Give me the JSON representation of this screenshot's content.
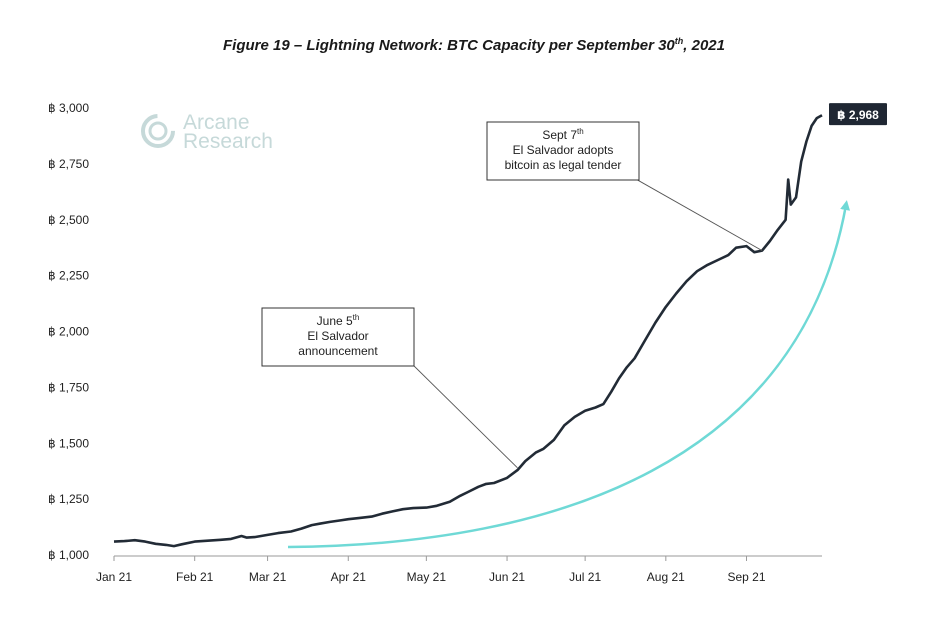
{
  "title": {
    "main": "Figure 19 – Lightning Network: BTC Capacity per September 30",
    "sup": "th",
    "suffix": ", 2021"
  },
  "logo": {
    "line1": "Arcane",
    "line2": "Research",
    "color": "#c6d9d9"
  },
  "colors": {
    "line": "#222b36",
    "arrow": "#6fd9d6",
    "axis": "#9a9a9a",
    "badge_bg": "#1f2733"
  },
  "chart_data": {
    "type": "line",
    "title": "Figure 19 – Lightning Network: BTC Capacity per September 30th, 2021",
    "xlabel": "",
    "ylabel": "",
    "ylim": [
      1000,
      3000
    ],
    "xlim": [
      "2021-01-01",
      "2021-09-30"
    ],
    "grid": false,
    "y_ticks": [
      {
        "value": 1000,
        "label": "฿ 1,000"
      },
      {
        "value": 1250,
        "label": "฿ 1,250"
      },
      {
        "value": 1500,
        "label": "฿ 1,500"
      },
      {
        "value": 1750,
        "label": "฿ 1,750"
      },
      {
        "value": 2000,
        "label": "฿ 2,000"
      },
      {
        "value": 2250,
        "label": "฿ 2,250"
      },
      {
        "value": 2500,
        "label": "฿ 2,500"
      },
      {
        "value": 2750,
        "label": "฿ 2,750"
      },
      {
        "value": 3000,
        "label": "฿ 3,000"
      }
    ],
    "x_ticks": [
      {
        "date": "2021-01-01",
        "label": "Jan 21"
      },
      {
        "date": "2021-02-01",
        "label": "Feb 21"
      },
      {
        "date": "2021-03-01",
        "label": "Mar 21"
      },
      {
        "date": "2021-04-01",
        "label": "Apr 21"
      },
      {
        "date": "2021-05-01",
        "label": "May 21"
      },
      {
        "date": "2021-06-01",
        "label": "Jun 21"
      },
      {
        "date": "2021-07-01",
        "label": "Jul 21"
      },
      {
        "date": "2021-08-01",
        "label": "Aug 21"
      },
      {
        "date": "2021-09-01",
        "label": "Sep 21"
      }
    ],
    "series": [
      {
        "name": "",
        "points": [
          [
            "2021-01-01",
            1060
          ],
          [
            "2021-01-05",
            1062
          ],
          [
            "2021-01-09",
            1066
          ],
          [
            "2021-01-13",
            1060
          ],
          [
            "2021-01-17",
            1050
          ],
          [
            "2021-01-21",
            1045
          ],
          [
            "2021-01-24",
            1040
          ],
          [
            "2021-01-27",
            1048
          ],
          [
            "2021-02-01",
            1060
          ],
          [
            "2021-02-06",
            1064
          ],
          [
            "2021-02-11",
            1068
          ],
          [
            "2021-02-15",
            1072
          ],
          [
            "2021-02-19",
            1085
          ],
          [
            "2021-02-21",
            1078
          ],
          [
            "2021-02-24",
            1080
          ],
          [
            "2021-03-01",
            1090
          ],
          [
            "2021-03-05",
            1098
          ],
          [
            "2021-03-10",
            1105
          ],
          [
            "2021-03-14",
            1118
          ],
          [
            "2021-03-18",
            1134
          ],
          [
            "2021-03-21",
            1140
          ],
          [
            "2021-03-25",
            1148
          ],
          [
            "2021-03-29",
            1155
          ],
          [
            "2021-04-01",
            1160
          ],
          [
            "2021-04-05",
            1165
          ],
          [
            "2021-04-10",
            1172
          ],
          [
            "2021-04-14",
            1185
          ],
          [
            "2021-04-18",
            1195
          ],
          [
            "2021-04-22",
            1205
          ],
          [
            "2021-04-26",
            1210
          ],
          [
            "2021-05-01",
            1212
          ],
          [
            "2021-05-05",
            1220
          ],
          [
            "2021-05-10",
            1238
          ],
          [
            "2021-05-14",
            1265
          ],
          [
            "2021-05-17",
            1282
          ],
          [
            "2021-05-21",
            1305
          ],
          [
            "2021-05-24",
            1318
          ],
          [
            "2021-05-27",
            1322
          ],
          [
            "2021-06-01",
            1345
          ],
          [
            "2021-06-05",
            1380
          ],
          [
            "2021-06-08",
            1420
          ],
          [
            "2021-06-12",
            1458
          ],
          [
            "2021-06-15",
            1475
          ],
          [
            "2021-06-19",
            1515
          ],
          [
            "2021-06-23",
            1580
          ],
          [
            "2021-06-27",
            1618
          ],
          [
            "2021-07-01",
            1645
          ],
          [
            "2021-07-05",
            1660
          ],
          [
            "2021-07-08",
            1675
          ],
          [
            "2021-07-11",
            1730
          ],
          [
            "2021-07-14",
            1790
          ],
          [
            "2021-07-17",
            1840
          ],
          [
            "2021-07-20",
            1880
          ],
          [
            "2021-07-24",
            1960
          ],
          [
            "2021-07-28",
            2040
          ],
          [
            "2021-08-01",
            2110
          ],
          [
            "2021-08-05",
            2170
          ],
          [
            "2021-08-09",
            2225
          ],
          [
            "2021-08-13",
            2270
          ],
          [
            "2021-08-17",
            2298
          ],
          [
            "2021-08-21",
            2320
          ],
          [
            "2021-08-25",
            2342
          ],
          [
            "2021-08-28",
            2375
          ],
          [
            "2021-09-01",
            2382
          ],
          [
            "2021-09-04",
            2355
          ],
          [
            "2021-09-07",
            2362
          ],
          [
            "2021-09-10",
            2405
          ],
          [
            "2021-09-13",
            2455
          ],
          [
            "2021-09-16",
            2500
          ],
          [
            "2021-09-17",
            2680
          ],
          [
            "2021-09-18",
            2568
          ],
          [
            "2021-09-20",
            2600
          ],
          [
            "2021-09-22",
            2760
          ],
          [
            "2021-09-24",
            2850
          ],
          [
            "2021-09-26",
            2920
          ],
          [
            "2021-09-28",
            2955
          ],
          [
            "2021-09-30",
            2968
          ]
        ]
      }
    ],
    "value_label": "฿ 2,968",
    "annotations": [
      {
        "lines": [
          "June 5",
          "El Salvador",
          "announcement"
        ],
        "sup": "th",
        "date": "2021-06-05",
        "value": 1390
      },
      {
        "lines": [
          "Sept 7",
          "El Salvador adopts",
          "bitcoin as legal tender"
        ],
        "sup": "th",
        "date": "2021-09-07",
        "value": 2362
      }
    ]
  }
}
